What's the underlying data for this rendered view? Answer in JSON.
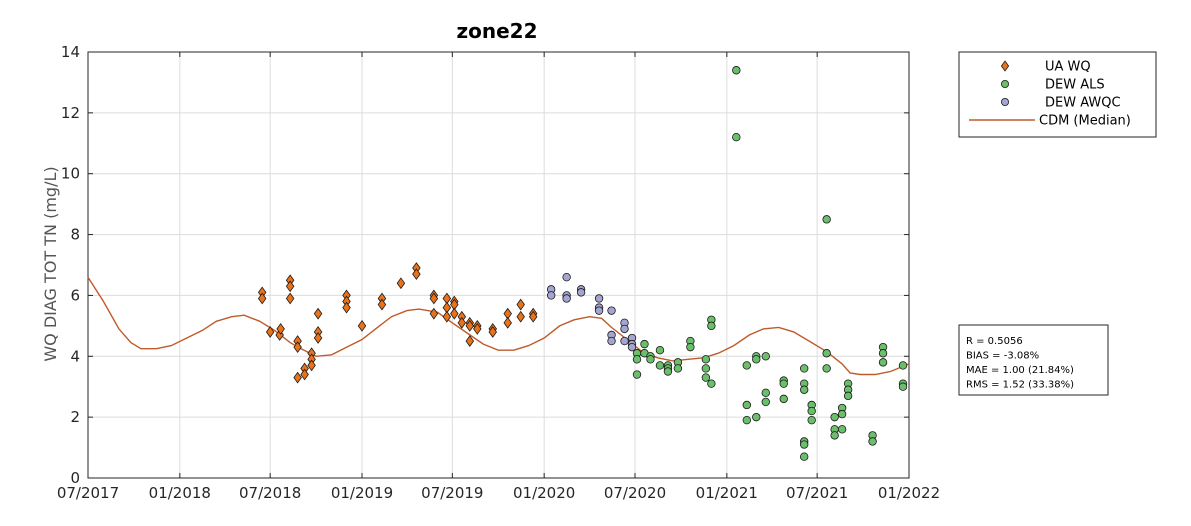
{
  "chart_data": {
    "type": "scatter",
    "title": "zone22",
    "xlabel": "",
    "ylabel": "WQ DIAG TOT TN (mg/L)",
    "xlim": [
      "2017-07-01",
      "2022-01-01"
    ],
    "ylim": [
      0,
      14
    ],
    "x_ticks": [
      "2017-07-01",
      "2018-01-01",
      "2018-07-01",
      "2019-01-01",
      "2019-07-01",
      "2020-01-01",
      "2020-07-01",
      "2021-01-01",
      "2021-07-01",
      "2022-01-01"
    ],
    "x_tick_labels": [
      "07/2017",
      "01/2018",
      "07/2018",
      "01/2019",
      "07/2019",
      "01/2020",
      "07/2020",
      "01/2021",
      "07/2021",
      "01/2022"
    ],
    "y_ticks": [
      0,
      2,
      4,
      6,
      8,
      10,
      12,
      14
    ],
    "y_tick_labels": [
      "0",
      "2",
      "4",
      "6",
      "8",
      "10",
      "12",
      "14"
    ],
    "grid": true,
    "legend_position": "outside-top-right",
    "series": [
      {
        "name": "UA WQ",
        "type": "scatter",
        "marker": "diamond",
        "color": "#e8731a",
        "points": [
          [
            "2018-06-15",
            6.1
          ],
          [
            "2018-06-15",
            5.9
          ],
          [
            "2018-07-01",
            4.8
          ],
          [
            "2018-07-20",
            4.7
          ],
          [
            "2018-07-22",
            4.9
          ],
          [
            "2018-08-10",
            6.5
          ],
          [
            "2018-08-10",
            6.3
          ],
          [
            "2018-08-10",
            5.9
          ],
          [
            "2018-08-25",
            4.5
          ],
          [
            "2018-08-25",
            4.3
          ],
          [
            "2018-08-25",
            3.3
          ],
          [
            "2018-09-08",
            3.6
          ],
          [
            "2018-09-08",
            3.4
          ],
          [
            "2018-09-22",
            4.1
          ],
          [
            "2018-09-22",
            3.9
          ],
          [
            "2018-09-22",
            3.7
          ],
          [
            "2018-10-05",
            5.4
          ],
          [
            "2018-10-05",
            4.8
          ],
          [
            "2018-10-05",
            4.6
          ],
          [
            "2018-12-01",
            6.0
          ],
          [
            "2018-12-01",
            5.8
          ],
          [
            "2018-12-01",
            5.6
          ],
          [
            "2019-01-01",
            5.0
          ],
          [
            "2019-02-10",
            5.9
          ],
          [
            "2019-02-10",
            5.7
          ],
          [
            "2019-03-20",
            6.4
          ],
          [
            "2019-04-20",
            6.9
          ],
          [
            "2019-04-20",
            6.7
          ],
          [
            "2019-05-25",
            6.0
          ],
          [
            "2019-05-25",
            5.9
          ],
          [
            "2019-05-25",
            5.4
          ],
          [
            "2019-06-20",
            5.9
          ],
          [
            "2019-06-20",
            5.6
          ],
          [
            "2019-06-20",
            5.3
          ],
          [
            "2019-07-05",
            5.8
          ],
          [
            "2019-07-05",
            5.7
          ],
          [
            "2019-07-05",
            5.4
          ],
          [
            "2019-07-20",
            5.3
          ],
          [
            "2019-07-20",
            5.1
          ],
          [
            "2019-08-05",
            5.1
          ],
          [
            "2019-08-05",
            5.0
          ],
          [
            "2019-08-05",
            4.5
          ],
          [
            "2019-08-20",
            5.0
          ],
          [
            "2019-08-20",
            4.9
          ],
          [
            "2019-09-20",
            4.9
          ],
          [
            "2019-09-20",
            4.8
          ],
          [
            "2019-10-20",
            5.4
          ],
          [
            "2019-10-20",
            5.1
          ],
          [
            "2019-11-15",
            5.7
          ],
          [
            "2019-11-15",
            5.3
          ],
          [
            "2019-12-10",
            5.4
          ],
          [
            "2019-12-10",
            5.3
          ]
        ]
      },
      {
        "name": "DEW ALS",
        "type": "scatter",
        "marker": "circle",
        "color": "#6bbf6b",
        "points": [
          [
            "2020-07-05",
            4.1
          ],
          [
            "2020-07-05",
            3.9
          ],
          [
            "2020-07-05",
            3.4
          ],
          [
            "2020-07-20",
            4.4
          ],
          [
            "2020-07-20",
            4.1
          ],
          [
            "2020-08-01",
            4.0
          ],
          [
            "2020-08-01",
            3.9
          ],
          [
            "2020-08-20",
            4.2
          ],
          [
            "2020-08-20",
            3.7
          ],
          [
            "2020-09-05",
            3.7
          ],
          [
            "2020-09-05",
            3.6
          ],
          [
            "2020-09-05",
            3.5
          ],
          [
            "2020-09-25",
            3.8
          ],
          [
            "2020-09-25",
            3.6
          ],
          [
            "2020-10-20",
            4.5
          ],
          [
            "2020-10-20",
            4.3
          ],
          [
            "2020-11-20",
            3.9
          ],
          [
            "2020-11-20",
            3.6
          ],
          [
            "2020-11-20",
            3.3
          ],
          [
            "2020-12-01",
            5.2
          ],
          [
            "2020-12-01",
            5.0
          ],
          [
            "2020-12-01",
            3.1
          ],
          [
            "2021-01-20",
            13.4
          ],
          [
            "2021-01-20",
            11.2
          ],
          [
            "2021-02-10",
            3.7
          ],
          [
            "2021-02-10",
            2.4
          ],
          [
            "2021-02-10",
            1.9
          ],
          [
            "2021-03-01",
            4.0
          ],
          [
            "2021-03-01",
            3.9
          ],
          [
            "2021-03-01",
            2.0
          ],
          [
            "2021-03-20",
            4.0
          ],
          [
            "2021-03-20",
            2.8
          ],
          [
            "2021-03-20",
            2.5
          ],
          [
            "2021-04-25",
            3.2
          ],
          [
            "2021-04-25",
            3.1
          ],
          [
            "2021-04-25",
            2.6
          ],
          [
            "2021-06-05",
            3.6
          ],
          [
            "2021-06-05",
            3.1
          ],
          [
            "2021-06-05",
            2.9
          ],
          [
            "2021-06-05",
            1.2
          ],
          [
            "2021-06-05",
            1.1
          ],
          [
            "2021-06-05",
            0.7
          ],
          [
            "2021-06-20",
            2.4
          ],
          [
            "2021-06-20",
            2.2
          ],
          [
            "2021-06-20",
            1.9
          ],
          [
            "2021-07-20",
            8.5
          ],
          [
            "2021-07-20",
            4.1
          ],
          [
            "2021-07-20",
            3.6
          ],
          [
            "2021-08-05",
            2.0
          ],
          [
            "2021-08-05",
            1.6
          ],
          [
            "2021-08-05",
            1.4
          ],
          [
            "2021-08-20",
            2.3
          ],
          [
            "2021-08-20",
            2.1
          ],
          [
            "2021-08-20",
            1.6
          ],
          [
            "2021-09-01",
            3.1
          ],
          [
            "2021-09-01",
            2.9
          ],
          [
            "2021-09-01",
            2.7
          ],
          [
            "2021-10-20",
            1.4
          ],
          [
            "2021-10-20",
            1.2
          ],
          [
            "2021-11-10",
            4.3
          ],
          [
            "2021-11-10",
            4.1
          ],
          [
            "2021-11-10",
            3.8
          ],
          [
            "2021-12-20",
            3.7
          ],
          [
            "2021-12-20",
            3.1
          ],
          [
            "2021-12-20",
            3.0
          ]
        ]
      },
      {
        "name": "DEW AWQC",
        "type": "scatter",
        "marker": "circle",
        "color": "#a5a5d2",
        "points": [
          [
            "2020-01-15",
            6.2
          ],
          [
            "2020-01-15",
            6.0
          ],
          [
            "2020-02-15",
            6.6
          ],
          [
            "2020-02-15",
            6.0
          ],
          [
            "2020-02-15",
            5.9
          ],
          [
            "2020-03-15",
            6.2
          ],
          [
            "2020-03-15",
            6.1
          ],
          [
            "2020-04-20",
            5.9
          ],
          [
            "2020-04-20",
            5.6
          ],
          [
            "2020-04-20",
            5.5
          ],
          [
            "2020-05-15",
            5.5
          ],
          [
            "2020-05-15",
            4.7
          ],
          [
            "2020-05-15",
            4.5
          ],
          [
            "2020-06-10",
            5.1
          ],
          [
            "2020-06-10",
            4.9
          ],
          [
            "2020-06-10",
            4.5
          ],
          [
            "2020-06-25",
            4.6
          ],
          [
            "2020-06-25",
            4.4
          ],
          [
            "2020-06-25",
            4.3
          ]
        ]
      },
      {
        "name": "CDM (Median)",
        "type": "line",
        "color": "#bf5b2a",
        "points": [
          [
            "2017-07-01",
            6.6
          ],
          [
            "2017-08-01",
            5.8
          ],
          [
            "2017-09-01",
            4.9
          ],
          [
            "2017-09-25",
            4.45
          ],
          [
            "2017-10-15",
            4.25
          ],
          [
            "2017-11-15",
            4.25
          ],
          [
            "2017-12-15",
            4.35
          ],
          [
            "2018-01-15",
            4.6
          ],
          [
            "2018-02-15",
            4.85
          ],
          [
            "2018-03-15",
            5.15
          ],
          [
            "2018-04-15",
            5.3
          ],
          [
            "2018-05-10",
            5.35
          ],
          [
            "2018-06-10",
            5.15
          ],
          [
            "2018-07-10",
            4.85
          ],
          [
            "2018-08-10",
            4.45
          ],
          [
            "2018-09-01",
            4.25
          ],
          [
            "2018-10-01",
            4.0
          ],
          [
            "2018-11-01",
            4.05
          ],
          [
            "2018-12-01",
            4.3
          ],
          [
            "2019-01-01",
            4.55
          ],
          [
            "2019-02-01",
            4.95
          ],
          [
            "2019-03-01",
            5.3
          ],
          [
            "2019-04-01",
            5.5
          ],
          [
            "2019-04-25",
            5.55
          ],
          [
            "2019-06-01",
            5.45
          ],
          [
            "2019-07-01",
            5.1
          ],
          [
            "2019-08-01",
            4.75
          ],
          [
            "2019-09-01",
            4.4
          ],
          [
            "2019-10-01",
            4.2
          ],
          [
            "2019-11-01",
            4.2
          ],
          [
            "2019-12-01",
            4.35
          ],
          [
            "2020-01-01",
            4.6
          ],
          [
            "2020-02-01",
            5.0
          ],
          [
            "2020-03-01",
            5.2
          ],
          [
            "2020-04-01",
            5.3
          ],
          [
            "2020-04-25",
            5.25
          ],
          [
            "2020-05-15",
            4.95
          ],
          [
            "2020-06-15",
            4.55
          ],
          [
            "2020-07-15",
            4.15
          ],
          [
            "2020-08-15",
            3.95
          ],
          [
            "2020-09-15",
            3.85
          ],
          [
            "2020-10-15",
            3.9
          ],
          [
            "2020-11-15",
            3.95
          ],
          [
            "2020-12-15",
            4.1
          ],
          [
            "2021-01-15",
            4.35
          ],
          [
            "2021-02-15",
            4.7
          ],
          [
            "2021-03-15",
            4.9
          ],
          [
            "2021-04-15",
            4.95
          ],
          [
            "2021-05-15",
            4.8
          ],
          [
            "2021-06-15",
            4.5
          ],
          [
            "2021-07-15",
            4.2
          ],
          [
            "2021-08-01",
            4.0
          ],
          [
            "2021-08-20",
            3.75
          ],
          [
            "2021-09-05",
            3.45
          ],
          [
            "2021-09-25",
            3.4
          ],
          [
            "2021-10-25",
            3.4
          ],
          [
            "2021-11-25",
            3.5
          ],
          [
            "2022-01-01",
            3.75
          ]
        ]
      }
    ],
    "stats_box": [
      "R = 0.5056",
      "BIAS = -3.08%",
      "MAE = 1.00 (21.84%)",
      "RMS = 1.52 (33.38%)"
    ]
  }
}
